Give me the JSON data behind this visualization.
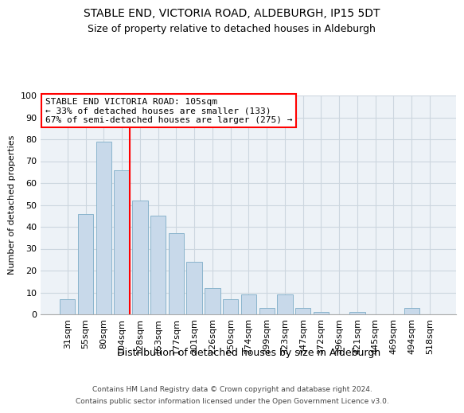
{
  "title": "STABLE END, VICTORIA ROAD, ALDEBURGH, IP15 5DT",
  "subtitle": "Size of property relative to detached houses in Aldeburgh",
  "xlabel": "Distribution of detached houses by size in Aldeburgh",
  "ylabel": "Number of detached properties",
  "categories": [
    "31sqm",
    "55sqm",
    "80sqm",
    "104sqm",
    "128sqm",
    "153sqm",
    "177sqm",
    "201sqm",
    "226sqm",
    "250sqm",
    "274sqm",
    "299sqm",
    "323sqm",
    "347sqm",
    "372sqm",
    "396sqm",
    "421sqm",
    "445sqm",
    "469sqm",
    "494sqm",
    "518sqm"
  ],
  "values": [
    7,
    46,
    79,
    66,
    52,
    45,
    37,
    24,
    12,
    7,
    9,
    3,
    9,
    3,
    1,
    0,
    1,
    0,
    0,
    3,
    0
  ],
  "bar_color": "#c8d9ea",
  "bar_edge_color": "#8ab4cc",
  "vline_index": 3,
  "vline_color": "red",
  "annotation_text": "STABLE END VICTORIA ROAD: 105sqm\n← 33% of detached houses are smaller (133)\n67% of semi-detached houses are larger (275) →",
  "annotation_box_color": "white",
  "annotation_box_edge_color": "red",
  "footer1": "Contains HM Land Registry data © Crown copyright and database right 2024.",
  "footer2": "Contains public sector information licensed under the Open Government Licence v3.0.",
  "ylim": [
    0,
    100
  ],
  "yticks": [
    0,
    10,
    20,
    30,
    40,
    50,
    60,
    70,
    80,
    90,
    100
  ],
  "bg_color": "#edf2f7",
  "grid_color": "#ccd6df"
}
